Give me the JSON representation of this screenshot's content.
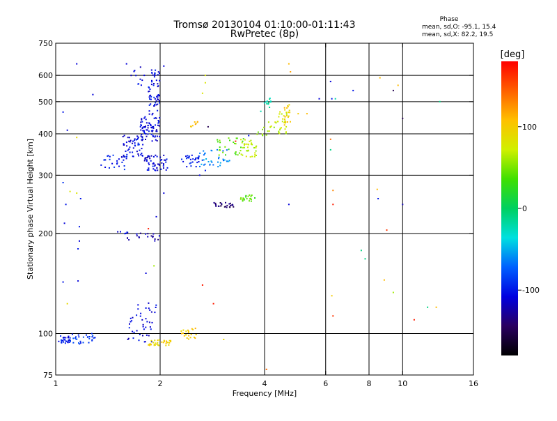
{
  "chart_data": {
    "type": "scatter",
    "title": "Tromsø 20130104 01:10:00-01:11:43",
    "subtitle": "RwPretec (8p)",
    "phase_box": {
      "heading": "Phase",
      "line1": "mean, sd,O:  -95.1, 15.4",
      "line2": "mean, sd,X:  82.2, 19.5"
    },
    "xlabel": "Frequency [MHz]",
    "ylabel": "Stationary phase Virtual Height [km]",
    "x_scale": "log",
    "y_scale": "log",
    "xlim": [
      1,
      16
    ],
    "ylim": [
      75,
      750
    ],
    "x_ticks": [
      1,
      2,
      4,
      6,
      8,
      10,
      16
    ],
    "x_tick_labels": [
      "1",
      "2",
      "4",
      "6",
      "8",
      "10",
      "16"
    ],
    "x_gridlines": [
      2,
      4,
      6,
      8,
      10
    ],
    "y_ticks": [
      75,
      100,
      200,
      300,
      400,
      500,
      600,
      750
    ],
    "y_tick_labels": [
      "75",
      "100",
      "200",
      "300",
      "400",
      "500",
      "600",
      "750"
    ],
    "y_gridlines": [
      100,
      200,
      300,
      400,
      500,
      600
    ],
    "grid": true,
    "colorbar": {
      "label": "[deg]",
      "range": [
        -180,
        180
      ],
      "ticks": [
        100,
        0,
        -100
      ],
      "tick_labels": [
        "100",
        "0",
        "-100"
      ],
      "colors": [
        "#000000",
        "#2a0060",
        "#0000e0",
        "#0060ff",
        "#00e0e0",
        "#00d060",
        "#40e000",
        "#d0f000",
        "#ffc000",
        "#ff6000",
        "#ff0000"
      ]
    },
    "clusters": [
      {
        "x": [
          1.02,
          1.1
        ],
        "y": [
          93,
          99
        ],
        "phase": -100,
        "n": 28
      },
      {
        "x": [
          1.1,
          1.32
        ],
        "y": [
          93,
          100
        ],
        "phase": -90,
        "n": 30
      },
      {
        "x": [
          1.55,
          1.9
        ],
        "y": [
          94,
          112
        ],
        "phase": -110,
        "n": 30
      },
      {
        "x": [
          1.7,
          1.95
        ],
        "y": [
          110,
          125
        ],
        "phase": -105,
        "n": 14
      },
      {
        "x": [
          1.85,
          2.15
        ],
        "y": [
          92,
          96
        ],
        "phase": 95,
        "n": 35
      },
      {
        "x": [
          2.3,
          2.55
        ],
        "y": [
          95,
          104
        ],
        "phase": 100,
        "n": 22
      },
      {
        "x": [
          1.6,
          2.0
        ],
        "y": [
          190,
          202
        ],
        "phase": -120,
        "n": 20
      },
      {
        "x": [
          1.48,
          1.62
        ],
        "y": [
          200,
          203
        ],
        "phase": -110,
        "n": 6
      },
      {
        "x": [
          1.35,
          1.6
        ],
        "y": [
          312,
          345
        ],
        "phase": -100,
        "n": 25
      },
      {
        "x": [
          1.55,
          1.8
        ],
        "y": [
          340,
          400
        ],
        "phase": -105,
        "n": 55
      },
      {
        "x": [
          1.75,
          2.0
        ],
        "y": [
          380,
          450
        ],
        "phase": -110,
        "n": 70
      },
      {
        "x": [
          1.85,
          2.0
        ],
        "y": [
          450,
          630
        ],
        "phase": -105,
        "n": 60
      },
      {
        "x": [
          1.65,
          1.78
        ],
        "y": [
          560,
          640
        ],
        "phase": -110,
        "n": 10
      },
      {
        "x": [
          1.8,
          2.1
        ],
        "y": [
          310,
          345
        ],
        "phase": -110,
        "n": 55
      },
      {
        "x": [
          2.3,
          2.65
        ],
        "y": [
          318,
          345
        ],
        "phase": -100,
        "n": 30
      },
      {
        "x": [
          2.6,
          3.2
        ],
        "y": [
          318,
          360
        ],
        "phase": -60,
        "n": 35
      },
      {
        "x": [
          2.9,
          3.5
        ],
        "y": [
          345,
          390
        ],
        "phase": 40,
        "n": 30
      },
      {
        "x": [
          3.4,
          3.8
        ],
        "y": [
          340,
          385
        ],
        "phase": 70,
        "n": 35
      },
      {
        "x": [
          3.8,
          4.3
        ],
        "y": [
          390,
          420
        ],
        "phase": 60,
        "n": 10
      },
      {
        "x": [
          4.1,
          4.7
        ],
        "y": [
          400,
          470
        ],
        "phase": 70,
        "n": 30
      },
      {
        "x": [
          4.55,
          4.75
        ],
        "y": [
          420,
          490
        ],
        "phase": 100,
        "n": 20
      },
      {
        "x": [
          3.9,
          4.2
        ],
        "y": [
          460,
          520
        ],
        "phase": -20,
        "n": 12
      },
      {
        "x": [
          2.85,
          3.3
        ],
        "y": [
          240,
          248
        ],
        "phase": -140,
        "n": 25
      },
      {
        "x": [
          3.4,
          3.75
        ],
        "y": [
          250,
          262
        ],
        "phase": 40,
        "n": 20
      },
      {
        "x": [
          2.45,
          2.6
        ],
        "y": [
          420,
          435
        ],
        "phase": 110,
        "n": 8
      }
    ],
    "points": [
      {
        "x": 1.05,
        "y": 465,
        "phase": -100
      },
      {
        "x": 1.08,
        "y": 410,
        "phase": -110
      },
      {
        "x": 1.15,
        "y": 650,
        "phase": -110
      },
      {
        "x": 1.28,
        "y": 525,
        "phase": -110
      },
      {
        "x": 1.15,
        "y": 390,
        "phase": 90
      },
      {
        "x": 1.05,
        "y": 285,
        "phase": -90
      },
      {
        "x": 1.1,
        "y": 268,
        "phase": 80
      },
      {
        "x": 1.15,
        "y": 265,
        "phase": 80
      },
      {
        "x": 1.18,
        "y": 255,
        "phase": -100
      },
      {
        "x": 1.07,
        "y": 245,
        "phase": -100
      },
      {
        "x": 1.06,
        "y": 215,
        "phase": -110
      },
      {
        "x": 1.17,
        "y": 210,
        "phase": -100
      },
      {
        "x": 1.17,
        "y": 190,
        "phase": -110
      },
      {
        "x": 1.16,
        "y": 180,
        "phase": -100
      },
      {
        "x": 1.05,
        "y": 143,
        "phase": -100
      },
      {
        "x": 1.16,
        "y": 144,
        "phase": -110
      },
      {
        "x": 1.08,
        "y": 123,
        "phase": 90
      },
      {
        "x": 1.6,
        "y": 650,
        "phase": -110
      },
      {
        "x": 1.8,
        "y": 600,
        "phase": -110
      },
      {
        "x": 2.05,
        "y": 265,
        "phase": -110
      },
      {
        "x": 1.95,
        "y": 225,
        "phase": -110
      },
      {
        "x": 1.85,
        "y": 207,
        "phase": 170
      },
      {
        "x": 1.92,
        "y": 160,
        "phase": 60
      },
      {
        "x": 1.82,
        "y": 152,
        "phase": -110
      },
      {
        "x": 2.05,
        "y": 640,
        "phase": -110
      },
      {
        "x": 2.7,
        "y": 600,
        "phase": 80
      },
      {
        "x": 2.7,
        "y": 570,
        "phase": 80
      },
      {
        "x": 2.65,
        "y": 530,
        "phase": 80
      },
      {
        "x": 2.75,
        "y": 420,
        "phase": -150
      },
      {
        "x": 2.6,
        "y": 300,
        "phase": -110
      },
      {
        "x": 2.7,
        "y": 310,
        "phase": -100
      },
      {
        "x": 2.65,
        "y": 140,
        "phase": 170
      },
      {
        "x": 2.85,
        "y": 123,
        "phase": 170
      },
      {
        "x": 3.05,
        "y": 96,
        "phase": 90
      },
      {
        "x": 3.3,
        "y": 380,
        "phase": 170
      },
      {
        "x": 3.6,
        "y": 395,
        "phase": -100
      },
      {
        "x": 4.05,
        "y": 78,
        "phase": 140
      },
      {
        "x": 4.7,
        "y": 650,
        "phase": 110
      },
      {
        "x": 4.75,
        "y": 615,
        "phase": 120
      },
      {
        "x": 4.7,
        "y": 245,
        "phase": -110
      },
      {
        "x": 5.0,
        "y": 460,
        "phase": 100
      },
      {
        "x": 5.3,
        "y": 460,
        "phase": 110
      },
      {
        "x": 5.75,
        "y": 510,
        "phase": -110
      },
      {
        "x": 6.2,
        "y": 575,
        "phase": -110
      },
      {
        "x": 6.25,
        "y": 510,
        "phase": -100
      },
      {
        "x": 6.4,
        "y": 510,
        "phase": -20
      },
      {
        "x": 6.2,
        "y": 385,
        "phase": 140
      },
      {
        "x": 6.2,
        "y": 358,
        "phase": -10
      },
      {
        "x": 6.3,
        "y": 270,
        "phase": 130
      },
      {
        "x": 6.3,
        "y": 245,
        "phase": 170
      },
      {
        "x": 6.25,
        "y": 130,
        "phase": 100
      },
      {
        "x": 6.3,
        "y": 113,
        "phase": 160
      },
      {
        "x": 7.2,
        "y": 540,
        "phase": -100
      },
      {
        "x": 7.6,
        "y": 178,
        "phase": -10
      },
      {
        "x": 7.8,
        "y": 168,
        "phase": -10
      },
      {
        "x": 8.6,
        "y": 590,
        "phase": 110
      },
      {
        "x": 8.45,
        "y": 272,
        "phase": 110
      },
      {
        "x": 8.5,
        "y": 255,
        "phase": -100
      },
      {
        "x": 9.0,
        "y": 205,
        "phase": 160
      },
      {
        "x": 8.85,
        "y": 145,
        "phase": 110
      },
      {
        "x": 9.4,
        "y": 133,
        "phase": 60
      },
      {
        "x": 9.4,
        "y": 540,
        "phase": -150
      },
      {
        "x": 9.7,
        "y": 560,
        "phase": 110
      },
      {
        "x": 10.0,
        "y": 445,
        "phase": -150
      },
      {
        "x": 10.0,
        "y": 245,
        "phase": -120
      },
      {
        "x": 10.8,
        "y": 110,
        "phase": 170
      },
      {
        "x": 11.8,
        "y": 120,
        "phase": -10
      },
      {
        "x": 12.5,
        "y": 120,
        "phase": 110
      },
      {
        "x": 12.8,
        "y": 500,
        "phase": -10
      }
    ]
  }
}
